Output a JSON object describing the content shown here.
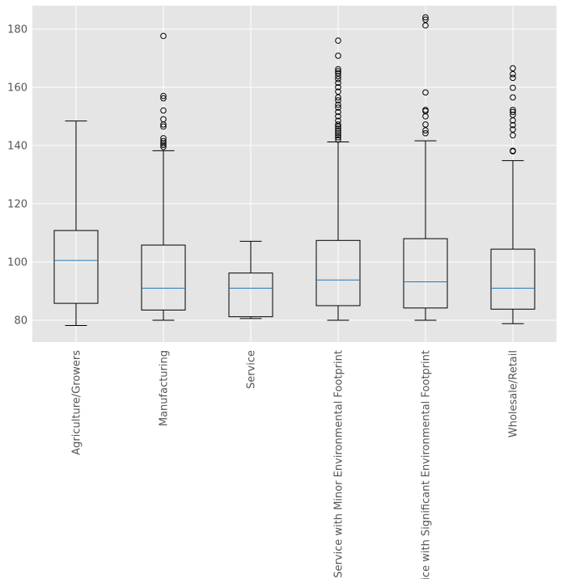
{
  "chart_data": {
    "type": "boxplot",
    "title": "",
    "xlabel": "",
    "ylabel": "",
    "ylim": [
      72.5,
      188
    ],
    "yticks": [
      80,
      100,
      120,
      140,
      160,
      180
    ],
    "grid": true,
    "legend": "none",
    "style": {
      "background": "#e5e5e5",
      "grid_color": "#ffffff",
      "box_color": "#000000",
      "median_color": "#1f77b4",
      "tick_label_color": "#555555"
    },
    "categories": [
      "Agriculture/Growers",
      "Manufacturing",
      "Service",
      "Service with Minor Environmental Footprint",
      "Service with Significant Environmental Footprint",
      "Wholesale/Retail"
    ],
    "boxes": [
      {
        "category": "Agriculture/Growers",
        "whislo": 78.2,
        "q1": 85.8,
        "med": 100.5,
        "q3": 110.8,
        "whishi": 148.4,
        "fliers": []
      },
      {
        "category": "Manufacturing",
        "whislo": 80.0,
        "q1": 83.5,
        "med": 91.0,
        "q3": 105.8,
        "whishi": 138.2,
        "fliers": [
          139.5,
          140.2,
          140.8,
          141.5,
          142.5,
          146.5,
          147.2,
          149.0,
          152.0,
          156.2,
          157.0,
          177.6
        ]
      },
      {
        "category": "Service",
        "whislo": 80.6,
        "q1": 81.2,
        "med": 91.0,
        "q3": 96.2,
        "whishi": 107.1,
        "fliers": []
      },
      {
        "category": "Service with Minor Environmental Footprint",
        "whislo": 80.0,
        "q1": 85.0,
        "med": 93.8,
        "q3": 107.4,
        "whishi": 141.2,
        "fliers": [
          142.0,
          142.8,
          143.5,
          144.2,
          145.0,
          145.8,
          146.5,
          147.2,
          148.5,
          150.0,
          151.5,
          153.0,
          154.0,
          155.5,
          156.5,
          158.5,
          160.0,
          161.5,
          162.8,
          163.8,
          164.8,
          165.5,
          166.2,
          170.8,
          176.0
        ]
      },
      {
        "category": "Service with Significant Environmental Footprint",
        "whislo": 80.0,
        "q1": 84.2,
        "med": 93.2,
        "q3": 108.0,
        "whishi": 141.6,
        "fliers": [
          144.2,
          145.2,
          147.2,
          150.0,
          151.8,
          152.2,
          158.2,
          181.2,
          183.2,
          184.0
        ]
      },
      {
        "category": "Wholesale/Retail",
        "whislo": 78.8,
        "q1": 83.8,
        "med": 91.0,
        "q3": 104.4,
        "whishi": 134.8,
        "fliers": [
          138.0,
          138.2,
          143.5,
          145.5,
          147.0,
          148.6,
          150.5,
          151.5,
          152.2,
          156.5,
          159.8,
          163.2,
          164.5,
          166.5
        ]
      }
    ]
  }
}
